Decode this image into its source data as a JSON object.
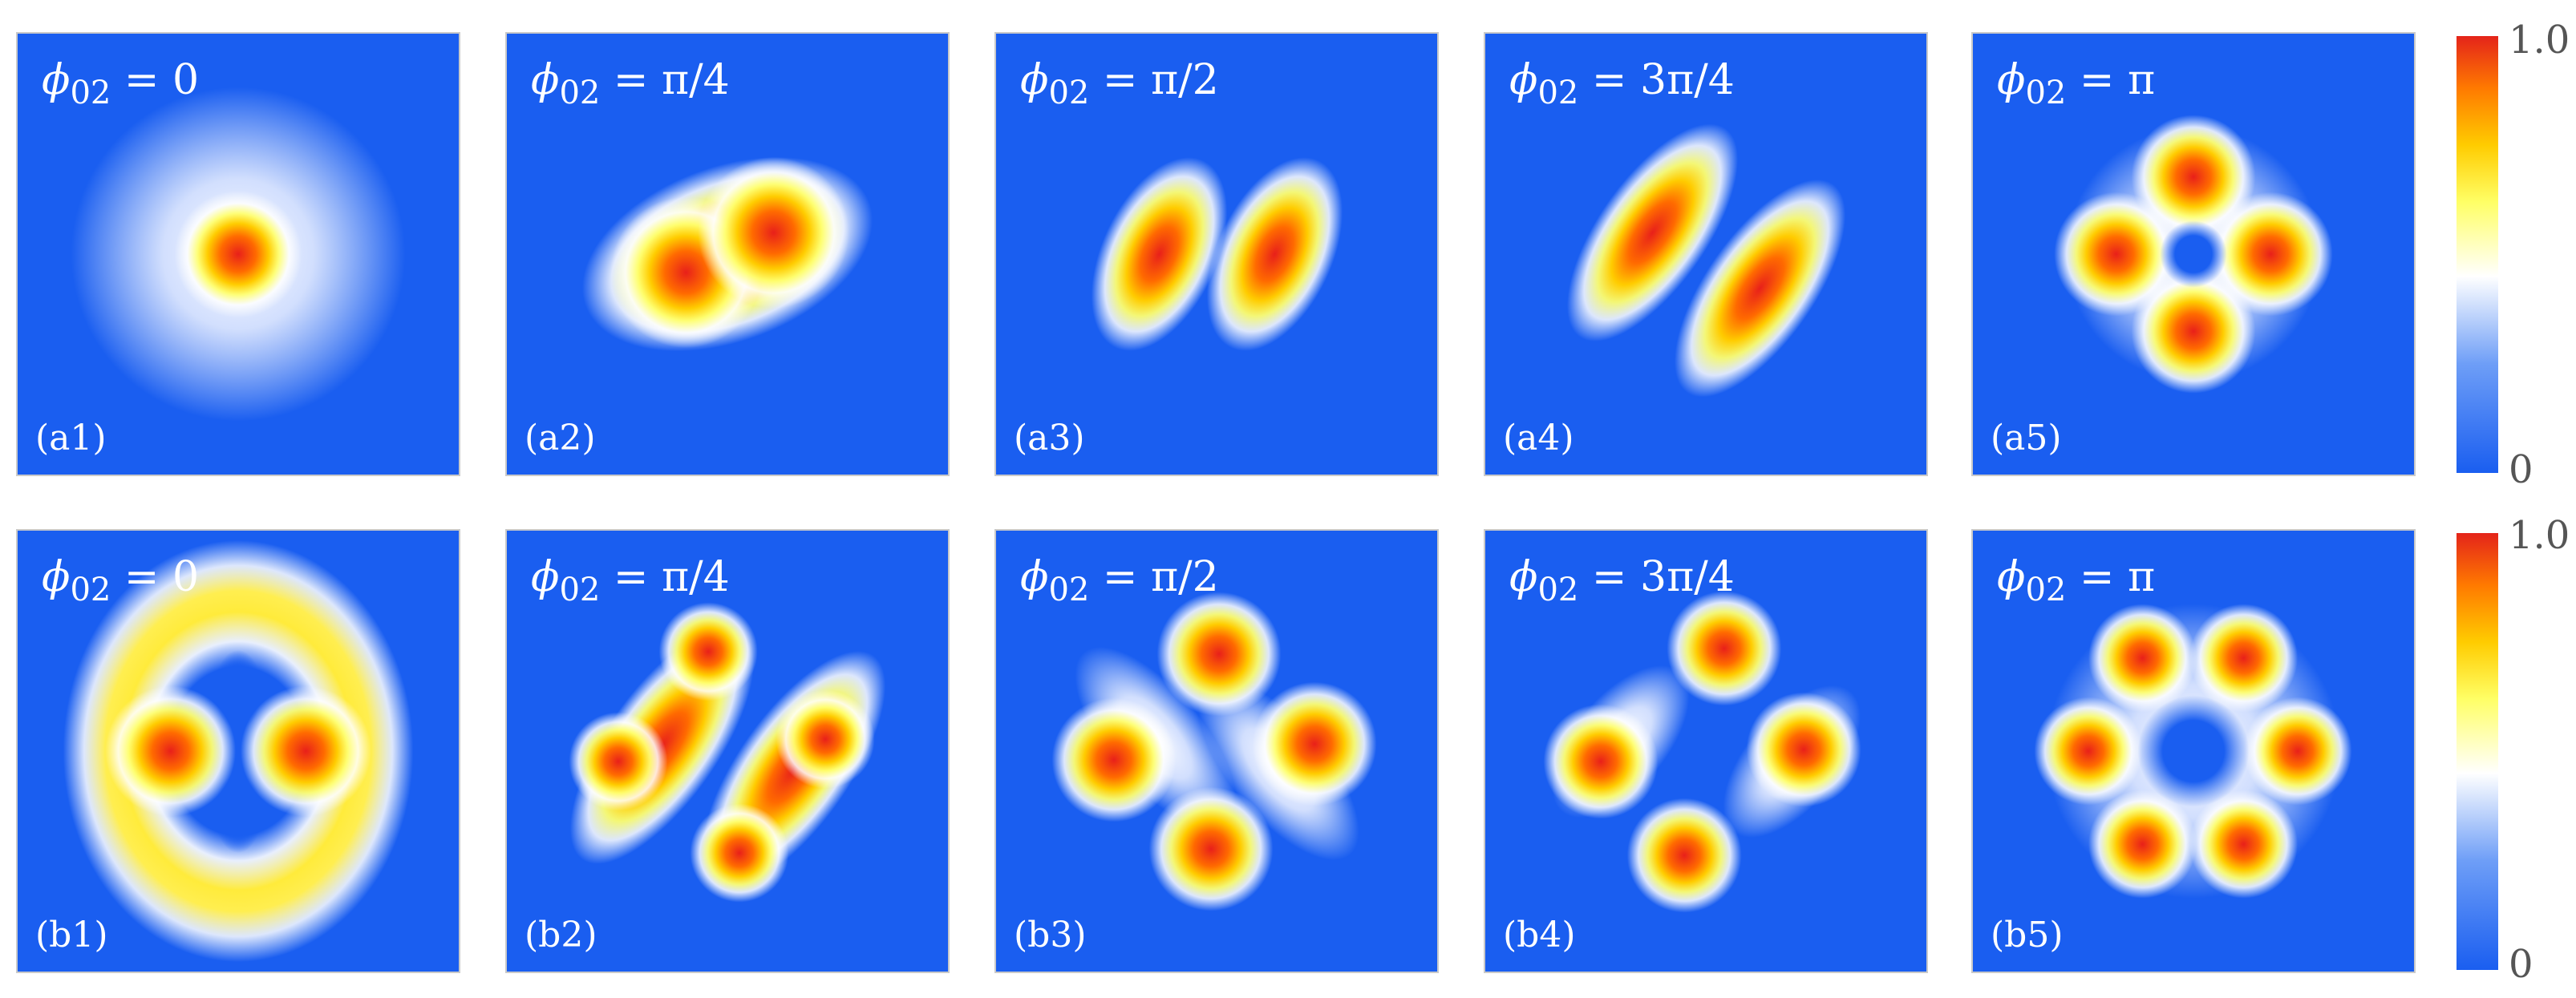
{
  "colormap": [
    "#1a5ef0",
    "#6e9ef7",
    "#ffffff",
    "#ffff66",
    "#ffcc00",
    "#ff7a00",
    "#e4241a"
  ],
  "colorbar_max": "1.0",
  "colorbar_min": "0",
  "phi_symbol": "ϕ",
  "phi_subscript": "02",
  "rows": [
    {
      "panels": [
        {
          "phase": "= 0",
          "label": "(a1)"
        },
        {
          "phase": "= π/4",
          "label": "(a2)"
        },
        {
          "phase": "= π/2",
          "label": "(a3)"
        },
        {
          "phase": "= 3π/4",
          "label": "(a4)"
        },
        {
          "phase": "= π",
          "label": "(a5)"
        }
      ]
    },
    {
      "panels": [
        {
          "phase": "= 0",
          "label": "(b1)"
        },
        {
          "phase": "= π/4",
          "label": "(b2)"
        },
        {
          "phase": "= π/2",
          "label": "(b3)"
        },
        {
          "phase": "= 3π/4",
          "label": "(b4)"
        },
        {
          "phase": "= π",
          "label": "(b5)"
        }
      ]
    }
  ]
}
